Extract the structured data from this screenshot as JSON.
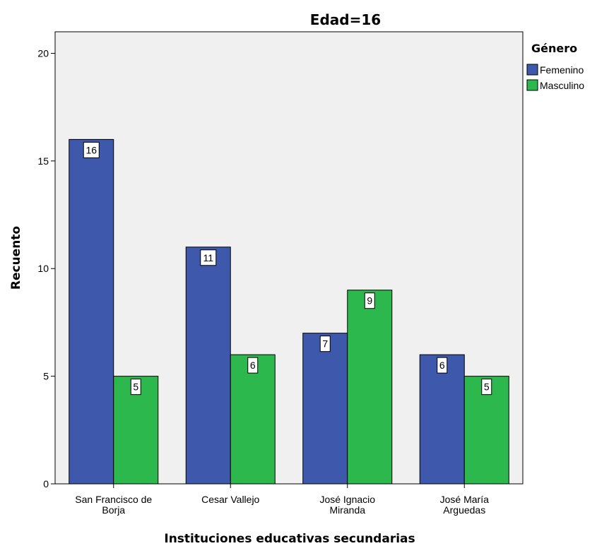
{
  "chart_data": {
    "type": "bar",
    "title": "Edad=16",
    "xlabel": "Instituciones educativas secundarias",
    "ylabel": "Recuento",
    "categories": [
      [
        "San Francisco de",
        "Borja"
      ],
      [
        "Cesar Vallejo"
      ],
      [
        "José Ignacio",
        "Miranda"
      ],
      [
        "José María",
        "Arguedas"
      ]
    ],
    "series": [
      {
        "name": "Femenino",
        "color": "#3e58ac",
        "values": [
          16,
          11,
          7,
          6
        ]
      },
      {
        "name": "Masculino",
        "color": "#2db84d",
        "values": [
          5,
          6,
          9,
          5
        ]
      }
    ],
    "ylim": [
      0,
      21
    ],
    "yticks": [
      0,
      5,
      10,
      15,
      20
    ],
    "grid": false,
    "plot_background": "#f0f0f0",
    "legend": {
      "title": "Género",
      "placement": "right-top"
    }
  }
}
